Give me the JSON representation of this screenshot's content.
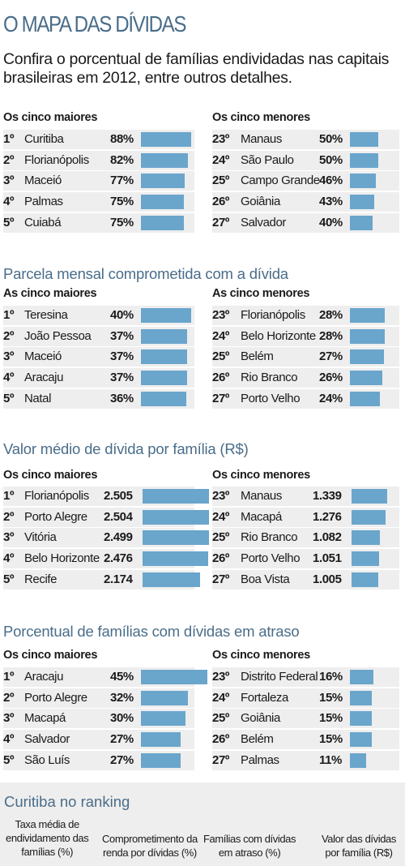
{
  "title": "O MAPA DAS DÍVIDAS",
  "intro": "Confira o porcentual de famílias endividadas nas capitais brasileiras em 2012, entre outros detalhes.",
  "bar_color": "#6aa5cc",
  "row_bg_color": "#eeeeee",
  "title_color": "#4a6d89",
  "chart_data": [
    {
      "type": "bar",
      "title": "",
      "groups": [
        {
          "label": "Os cinco maiores",
          "rows": [
            {
              "rank": "1º",
              "city": "Curitiba",
              "value": 88,
              "label": "88%"
            },
            {
              "rank": "2º",
              "city": "Florianópolis",
              "value": 82,
              "label": "82%"
            },
            {
              "rank": "3º",
              "city": "Maceió",
              "value": 77,
              "label": "77%"
            },
            {
              "rank": "4º",
              "city": "Palmas",
              "value": 75,
              "label": "75%"
            },
            {
              "rank": "5º",
              "city": "Cuiabá",
              "value": 75,
              "label": "75%"
            }
          ]
        },
        {
          "label": "Os cinco menores",
          "rows": [
            {
              "rank": "23º",
              "city": "Manaus",
              "value": 50,
              "label": "50%"
            },
            {
              "rank": "24º",
              "city": "São Paulo",
              "value": 50,
              "label": "50%"
            },
            {
              "rank": "25º",
              "city": "Campo Grande",
              "value": 46,
              "label": "46%"
            },
            {
              "rank": "26º",
              "city": "Goiânia",
              "value": 43,
              "label": "43%"
            },
            {
              "rank": "27º",
              "city": "Salvador",
              "value": 40,
              "label": "40%"
            }
          ]
        }
      ]
    },
    {
      "type": "bar",
      "title": "Parcela mensal comprometida com a dívida",
      "groups": [
        {
          "label": "As cinco maiores",
          "rows": [
            {
              "rank": "1º",
              "city": "Teresina",
              "value": 40,
              "label": "40%"
            },
            {
              "rank": "2º",
              "city": "João Pessoa",
              "value": 37,
              "label": "37%"
            },
            {
              "rank": "3º",
              "city": "Maceió",
              "value": 37,
              "label": "37%"
            },
            {
              "rank": "4º",
              "city": "Aracaju",
              "value": 37,
              "label": "37%"
            },
            {
              "rank": "5º",
              "city": "Natal",
              "value": 36,
              "label": "36%"
            }
          ]
        },
        {
          "label": "As cinco menores",
          "rows": [
            {
              "rank": "23º",
              "city": "Florianópolis",
              "value": 28,
              "label": "28%"
            },
            {
              "rank": "24º",
              "city": "Belo Horizonte",
              "value": 28,
              "label": "28%"
            },
            {
              "rank": "25º",
              "city": "Belém",
              "value": 27,
              "label": "27%"
            },
            {
              "rank": "26º",
              "city": "Rio Branco",
              "value": 26,
              "label": "26%"
            },
            {
              "rank": "27º",
              "city": "Porto Velho",
              "value": 24,
              "label": "24%"
            }
          ]
        }
      ]
    },
    {
      "type": "bar",
      "title": "Valor médio de dívida por família (R$)",
      "groups": [
        {
          "label": "Os cinco maiores",
          "rows": [
            {
              "rank": "1º",
              "city": "Florianópolis",
              "value": 2505,
              "label": "2.505"
            },
            {
              "rank": "2º",
              "city": "Porto Alegre",
              "value": 2504,
              "label": "2.504"
            },
            {
              "rank": "3º",
              "city": "Vitória",
              "value": 2499,
              "label": "2.499"
            },
            {
              "rank": "4º",
              "city": "Belo Horizonte",
              "value": 2476,
              "label": "2.476"
            },
            {
              "rank": "5º",
              "city": "Recife",
              "value": 2174,
              "label": "2.174"
            }
          ]
        },
        {
          "label": "Os cinco menores",
          "rows": [
            {
              "rank": "23º",
              "city": "Manaus",
              "value": 1339,
              "label": "1.339"
            },
            {
              "rank": "24º",
              "city": "Macapá",
              "value": 1276,
              "label": "1.276"
            },
            {
              "rank": "25º",
              "city": "Rio Branco",
              "value": 1082,
              "label": "1.082"
            },
            {
              "rank": "26º",
              "city": "Porto Velho",
              "value": 1051,
              "label": "1.051"
            },
            {
              "rank": "27º",
              "city": "Boa Vista",
              "value": 1005,
              "label": "1.005"
            }
          ]
        }
      ]
    },
    {
      "type": "bar",
      "title": "Porcentual de famílias com dívidas em atraso",
      "groups": [
        {
          "label": "Os cinco maiores",
          "rows": [
            {
              "rank": "1º",
              "city": "Aracaju",
              "value": 45,
              "label": "45%"
            },
            {
              "rank": "2º",
              "city": "Porto Alegre",
              "value": 32,
              "label": "32%"
            },
            {
              "rank": "3º",
              "city": "Macapá",
              "value": 30,
              "label": "30%"
            },
            {
              "rank": "4º",
              "city": "Salvador",
              "value": 27,
              "label": "27%"
            },
            {
              "rank": "5º",
              "city": "São Luís",
              "value": 27,
              "label": "27%"
            }
          ]
        },
        {
          "label": "Os cinco menores",
          "rows": [
            {
              "rank": "23º",
              "city": "Distrito Federal",
              "value": 16,
              "label": "16%"
            },
            {
              "rank": "24º",
              "city": "Fortaleza",
              "value": 15,
              "label": "15%"
            },
            {
              "rank": "25º",
              "city": "Goiânia",
              "value": 15,
              "label": "15%"
            },
            {
              "rank": "26º",
              "city": "Belém",
              "value": 15,
              "label": "15%"
            },
            {
              "rank": "27º",
              "city": "Palmas",
              "value": 11,
              "label": "11%"
            }
          ]
        }
      ]
    }
  ],
  "ranking": {
    "title": "Curitiba no ranking",
    "labels": [
      "Taxa média de\nendividamento das\nfamílias (%)",
      "Comprometimento da\nrenda por dívidas (%)",
      "Famílias com dívidas\nem atraso (%)",
      "Valor das dívidas\npor família (R$)"
    ]
  }
}
